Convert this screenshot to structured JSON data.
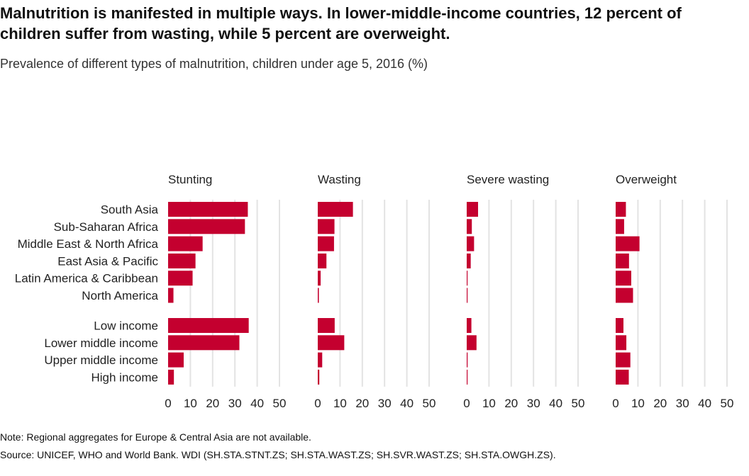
{
  "title": "Malnutrition is manifested in multiple ways. In lower-middle-income countries, 12 percent of children suffer from wasting, while 5 percent are overweight.",
  "subtitle": "Prevalence of different types of malnutrition, children under age 5, 2016 (%)",
  "note": "Note: Regional aggregates for Europe & Central Asia are not available.",
  "source": "Source: UNICEF, WHO and World Bank. WDI (SH.STA.STNT.ZS; SH.STA.WAST.ZS; SH.SVR.WAST.ZS; SH.STA.OWGH.ZS).",
  "colors": {
    "bar": "#c4002f",
    "grid": "#e3e3e3"
  },
  "chart_data": {
    "type": "bar",
    "orientation": "horizontal",
    "categories": [
      "South Asia",
      "Sub-Saharan Africa",
      "Middle East & North Africa",
      "East Asia & Pacific",
      "Latin America & Caribbean",
      "North America",
      "Low income",
      "Lower middle income",
      "Upper middle income",
      "High income"
    ],
    "groups": [
      {
        "categories": [
          "South Asia",
          "Sub-Saharan Africa",
          "Middle East & North Africa",
          "East Asia & Pacific",
          "Latin America & Caribbean",
          "North America"
        ]
      },
      {
        "categories": [
          "Low income",
          "Lower middle income",
          "Upper middle income",
          "High income"
        ]
      }
    ],
    "series": [
      {
        "name": "Stunting",
        "values": [
          35.8,
          34.5,
          15.5,
          12.3,
          11.0,
          2.4,
          36.2,
          32.0,
          7.0,
          2.6
        ]
      },
      {
        "name": "Wasting",
        "values": [
          15.8,
          7.5,
          7.3,
          3.9,
          1.3,
          0.5,
          7.6,
          11.9,
          2.0,
          0.7
        ]
      },
      {
        "name": "Severe wasting",
        "values": [
          5.1,
          2.3,
          3.3,
          1.8,
          0.3,
          0.1,
          2.1,
          4.4,
          0.4,
          0.1
        ]
      },
      {
        "name": "Overweight",
        "values": [
          4.6,
          3.8,
          10.7,
          6.0,
          7.0,
          7.8,
          3.5,
          4.8,
          6.6,
          5.9
        ]
      }
    ],
    "xticks": [
      "0",
      "10",
      "20",
      "30",
      "40",
      "50"
    ],
    "xlim": [
      0,
      50
    ],
    "grid": true
  }
}
